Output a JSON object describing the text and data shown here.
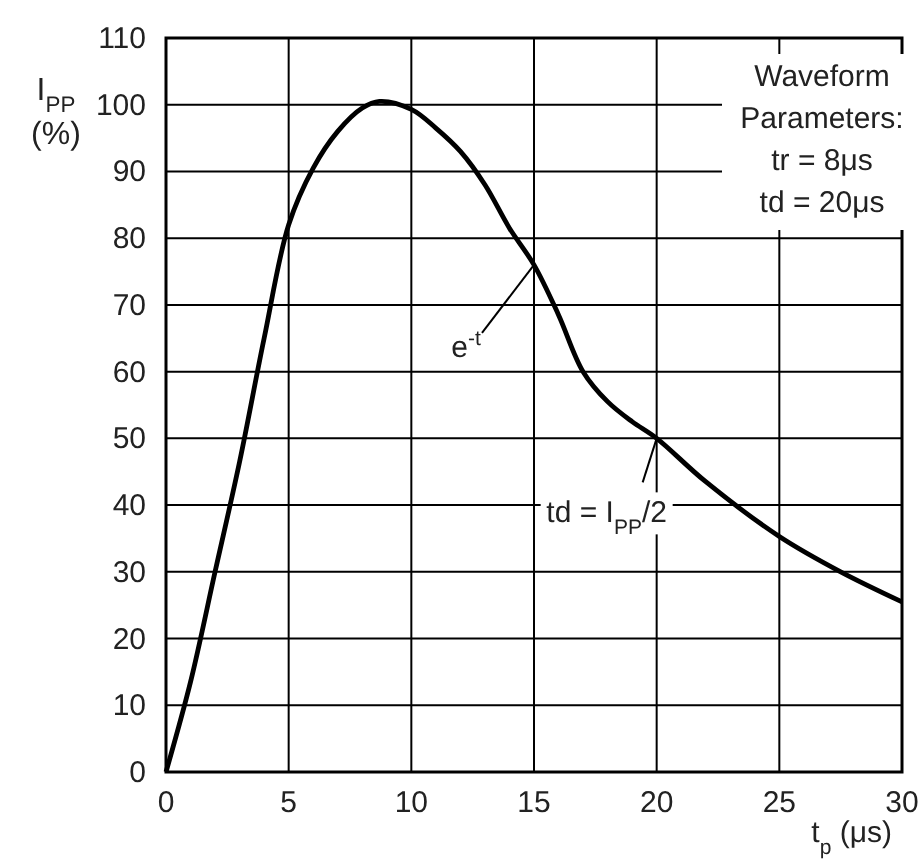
{
  "chart_data": {
    "type": "line",
    "xlabel": "t$_{p}$ (μs)",
    "ylabel": "I$_{PP}$\n(%)",
    "xlim": [
      0,
      30
    ],
    "xticks": [
      0,
      5,
      10,
      15,
      20,
      25,
      30
    ],
    "ylim": [
      0,
      110
    ],
    "yticks": [
      0,
      10,
      20,
      30,
      40,
      50,
      60,
      70,
      80,
      90,
      100,
      110
    ],
    "grid": true,
    "series": [
      {
        "color": "#000000",
        "x": [
          0,
          1,
          2,
          3,
          4,
          5,
          6,
          7,
          8,
          8.7,
          10,
          11,
          12,
          13,
          14,
          15,
          16,
          17,
          18,
          19,
          20,
          22,
          25,
          27.5,
          30
        ],
        "values": [
          0,
          13.5,
          30,
          46.5,
          65,
          82,
          90.5,
          96,
          99.5,
          100.5,
          99.3,
          96.5,
          93,
          88,
          81.5,
          76,
          68.5,
          60,
          55.5,
          52.5,
          50,
          43.5,
          35.3,
          30,
          25.5
        ]
      }
    ],
    "annotations": [
      {
        "text": "e$^{-t}$",
        "x": 15,
        "y": 76
      },
      {
        "text": "td = I$_{PP}$/2",
        "x": 20,
        "y": 50
      },
      "Waveform\nParameters:\ntr = 8μs\ntd = 20μs"
    ]
  }
}
